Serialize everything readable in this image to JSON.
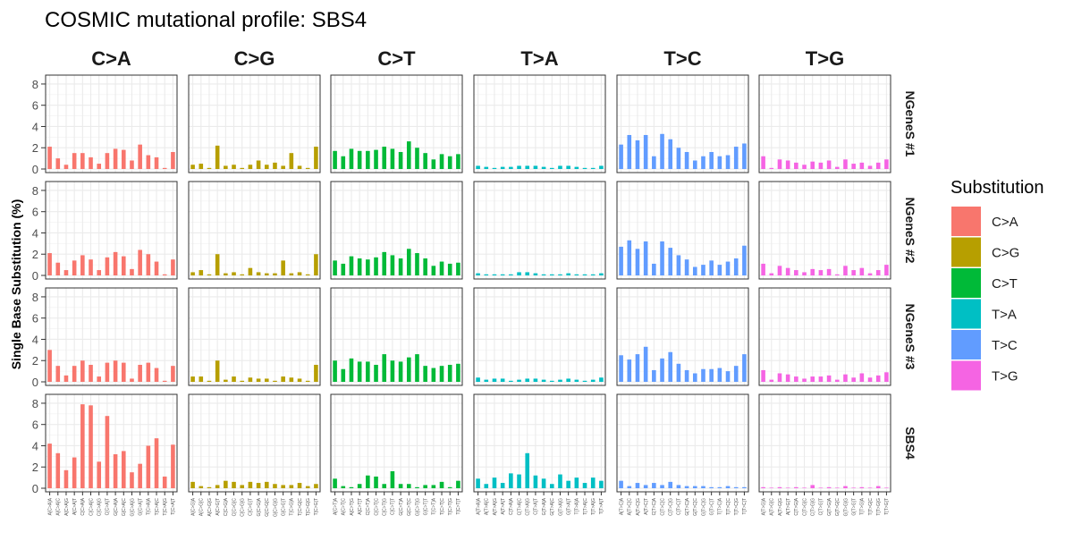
{
  "chart_data": {
    "type": "bar",
    "title": "COSMIC mutational profile: SBS4",
    "ylabel": "Single Base Substitution (%)",
    "xlabel": "",
    "ylim": [
      0,
      8.5
    ],
    "yticks": [
      0,
      2,
      4,
      6,
      8
    ],
    "grid": true,
    "legend_position": "right",
    "legend": {
      "title": "Substitution",
      "items": [
        {
          "label": "C>A",
          "color": "#F8766D"
        },
        {
          "label": "C>G",
          "color": "#B79F00"
        },
        {
          "label": "C>T",
          "color": "#00BA38"
        },
        {
          "label": "T>A",
          "color": "#00BFC4"
        },
        {
          "label": "T>C",
          "color": "#619CFF"
        },
        {
          "label": "T>G",
          "color": "#F564E3"
        }
      ]
    },
    "columns": [
      "C>A",
      "C>G",
      "C>T",
      "T>A",
      "T>C",
      "T>G"
    ],
    "rows": [
      "NGeneS #1",
      "NGeneS #2",
      "NGeneS #3",
      "SBS4"
    ],
    "tick_labels": {
      "C>A": [
        "A[C>A]A",
        "A[C>A]C",
        "A[C>A]G",
        "A[C>A]T",
        "C[C>A]A",
        "C[C>A]C",
        "C[C>A]G",
        "C[C>A]T",
        "G[C>A]A",
        "G[C>A]C",
        "G[C>A]G",
        "G[C>A]T",
        "T[C>A]A",
        "T[C>A]C",
        "T[C>A]G",
        "T[C>A]T"
      ],
      "C>G": [
        "A[C>G]A",
        "A[C>G]C",
        "A[C>G]G",
        "A[C>G]T",
        "C[C>G]A",
        "C[C>G]C",
        "C[C>G]G",
        "C[C>G]T",
        "G[C>G]A",
        "G[C>G]C",
        "G[C>G]G",
        "G[C>G]T",
        "T[C>G]A",
        "T[C>G]C",
        "T[C>G]G",
        "T[C>G]T"
      ],
      "C>T": [
        "A[C>T]A",
        "A[C>T]C",
        "A[C>T]G",
        "A[C>T]T",
        "C[C>T]A",
        "C[C>T]C",
        "C[C>T]G",
        "C[C>T]T",
        "G[C>T]A",
        "G[C>T]C",
        "G[C>T]G",
        "G[C>T]T",
        "T[C>T]A",
        "T[C>T]C",
        "T[C>T]G",
        "T[C>T]T"
      ],
      "T>A": [
        "A[T>A]A",
        "A[T>A]C",
        "A[T>A]G",
        "A[T>A]T",
        "C[T>A]A",
        "C[T>A]C",
        "C[T>A]G",
        "C[T>A]T",
        "G[T>A]A",
        "G[T>A]C",
        "G[T>A]G",
        "G[T>A]T",
        "T[T>A]A",
        "T[T>A]C",
        "T[T>A]G",
        "T[T>A]T"
      ],
      "T>C": [
        "A[T>C]A",
        "A[T>C]C",
        "A[T>C]G",
        "A[T>C]T",
        "C[T>C]A",
        "C[T>C]C",
        "C[T>C]G",
        "C[T>C]T",
        "G[T>C]A",
        "G[T>C]C",
        "G[T>C]G",
        "G[T>C]T",
        "T[T>C]A",
        "T[T>C]C",
        "T[T>C]G",
        "T[T>C]T"
      ],
      "T>G": [
        "A[T>G]A",
        "A[T>G]C",
        "A[T>G]G",
        "A[T>G]T",
        "C[T>G]A",
        "C[T>G]C",
        "C[T>G]G",
        "C[T>G]T",
        "G[T>G]A",
        "G[T>G]C",
        "G[T>G]G",
        "G[T>G]T",
        "T[T>G]A",
        "T[T>G]C",
        "T[T>G]G",
        "T[T>G]T"
      ]
    },
    "series": [
      {
        "name": "NGeneS #1",
        "values": {
          "C>A": [
            2.1,
            1.0,
            0.4,
            1.5,
            1.5,
            1.1,
            0.5,
            1.5,
            1.9,
            1.8,
            0.8,
            2.3,
            1.3,
            1.1,
            0.1,
            1.6
          ],
          "C>G": [
            0.4,
            0.5,
            0.1,
            2.2,
            0.3,
            0.4,
            0.1,
            0.4,
            0.8,
            0.4,
            0.6,
            0.3,
            1.5,
            0.3,
            0.1,
            2.1
          ],
          "C>T": [
            1.7,
            1.2,
            1.9,
            1.7,
            1.7,
            1.8,
            2.1,
            1.9,
            1.6,
            2.6,
            2.0,
            1.5,
            0.9,
            1.4,
            1.2,
            1.4
          ],
          "T>A": [
            0.3,
            0.2,
            0.1,
            0.2,
            0.2,
            0.3,
            0.3,
            0.3,
            0.2,
            0.1,
            0.3,
            0.3,
            0.2,
            0.1,
            0.1,
            0.3
          ],
          "T>C": [
            2.3,
            3.2,
            2.7,
            3.2,
            1.2,
            3.3,
            2.8,
            2.0,
            1.6,
            0.8,
            1.2,
            1.6,
            1.2,
            1.3,
            2.1,
            2.4
          ],
          "T>G": [
            1.2,
            0.1,
            0.9,
            0.8,
            0.6,
            0.4,
            0.7,
            0.6,
            0.8,
            0.2,
            0.9,
            0.5,
            0.6,
            0.3,
            0.6,
            0.9
          ]
        }
      },
      {
        "name": "NGeneS #2",
        "values": {
          "C>A": [
            2.1,
            1.2,
            0.5,
            1.4,
            1.9,
            1.5,
            0.5,
            1.7,
            2.2,
            1.8,
            0.6,
            2.4,
            2.0,
            1.3,
            0.1,
            1.5
          ],
          "C>G": [
            0.3,
            0.5,
            0.1,
            2.0,
            0.2,
            0.3,
            0.1,
            0.7,
            0.3,
            0.2,
            0.2,
            1.4,
            0.2,
            0.3,
            0.1,
            2.0
          ],
          "C>T": [
            1.4,
            1.1,
            1.8,
            1.6,
            1.5,
            1.7,
            2.2,
            1.9,
            1.6,
            2.5,
            2.1,
            1.6,
            0.9,
            1.3,
            1.1,
            1.2
          ],
          "T>A": [
            0.2,
            0.1,
            0.1,
            0.1,
            0.1,
            0.3,
            0.3,
            0.2,
            0.1,
            0.1,
            0.1,
            0.2,
            0.1,
            0.1,
            0.1,
            0.2
          ],
          "T>C": [
            2.7,
            3.3,
            2.5,
            3.2,
            1.1,
            3.2,
            2.6,
            1.9,
            1.5,
            0.8,
            1.0,
            1.4,
            1.0,
            1.3,
            1.6,
            2.8
          ],
          "T>G": [
            1.1,
            0.2,
            0.9,
            0.7,
            0.5,
            0.3,
            0.6,
            0.5,
            0.6,
            0.1,
            0.9,
            0.5,
            0.7,
            0.2,
            0.5,
            1.0
          ]
        }
      },
      {
        "name": "NGeneS #3",
        "values": {
          "C>A": [
            3.0,
            1.5,
            0.6,
            1.5,
            2.0,
            1.6,
            0.5,
            1.8,
            2.0,
            1.8,
            0.3,
            1.6,
            1.8,
            1.3,
            0.1,
            1.5
          ],
          "C>G": [
            0.5,
            0.5,
            0.1,
            2.0,
            0.2,
            0.5,
            0.1,
            0.4,
            0.3,
            0.3,
            0.1,
            0.5,
            0.4,
            0.3,
            0.1,
            1.6
          ],
          "C>T": [
            2.0,
            1.2,
            2.2,
            1.9,
            1.9,
            1.6,
            2.6,
            2.0,
            1.9,
            2.3,
            2.6,
            1.5,
            1.3,
            1.5,
            1.6,
            1.7
          ],
          "T>A": [
            0.4,
            0.2,
            0.3,
            0.3,
            0.1,
            0.2,
            0.3,
            0.3,
            0.2,
            0.1,
            0.2,
            0.3,
            0.2,
            0.1,
            0.2,
            0.4
          ],
          "T>C": [
            2.5,
            2.1,
            2.6,
            3.3,
            1.1,
            2.2,
            2.8,
            1.7,
            1.1,
            0.8,
            1.2,
            1.2,
            1.3,
            1.0,
            1.5,
            2.6
          ],
          "T>G": [
            1.1,
            0.2,
            0.8,
            0.7,
            0.5,
            0.3,
            0.5,
            0.5,
            0.6,
            0.2,
            0.7,
            0.4,
            0.8,
            0.4,
            0.6,
            0.9
          ]
        }
      },
      {
        "name": "SBS4",
        "values": {
          "C>A": [
            4.2,
            3.3,
            1.7,
            2.9,
            7.9,
            7.8,
            2.5,
            6.8,
            3.2,
            3.5,
            1.5,
            2.3,
            4.0,
            4.7,
            1.1,
            4.1
          ],
          "C>G": [
            0.6,
            0.2,
            0.1,
            0.3,
            0.7,
            0.6,
            0.3,
            0.6,
            0.5,
            0.6,
            0.4,
            0.3,
            0.3,
            0.5,
            0.2,
            0.4
          ],
          "C>T": [
            0.9,
            0.2,
            0.1,
            0.4,
            1.2,
            1.1,
            0.4,
            1.6,
            0.4,
            0.4,
            0.1,
            0.3,
            0.3,
            0.6,
            0.1,
            0.7
          ],
          "T>A": [
            0.9,
            0.4,
            1.0,
            0.5,
            1.4,
            1.3,
            3.3,
            1.2,
            0.9,
            0.4,
            1.3,
            0.7,
            1.0,
            0.5,
            1.0,
            0.7
          ],
          "T>C": [
            0.7,
            0.2,
            0.5,
            0.3,
            0.5,
            0.3,
            0.6,
            0.3,
            0.2,
            0.2,
            0.2,
            0.1,
            0.1,
            0.2,
            0.1,
            0.1
          ],
          "T>G": [
            0.1,
            0.05,
            0.1,
            0.05,
            0.1,
            0.05,
            0.3,
            0.05,
            0.1,
            0.05,
            0.2,
            0.05,
            0.1,
            0.05,
            0.2,
            0.05
          ]
        }
      }
    ]
  }
}
